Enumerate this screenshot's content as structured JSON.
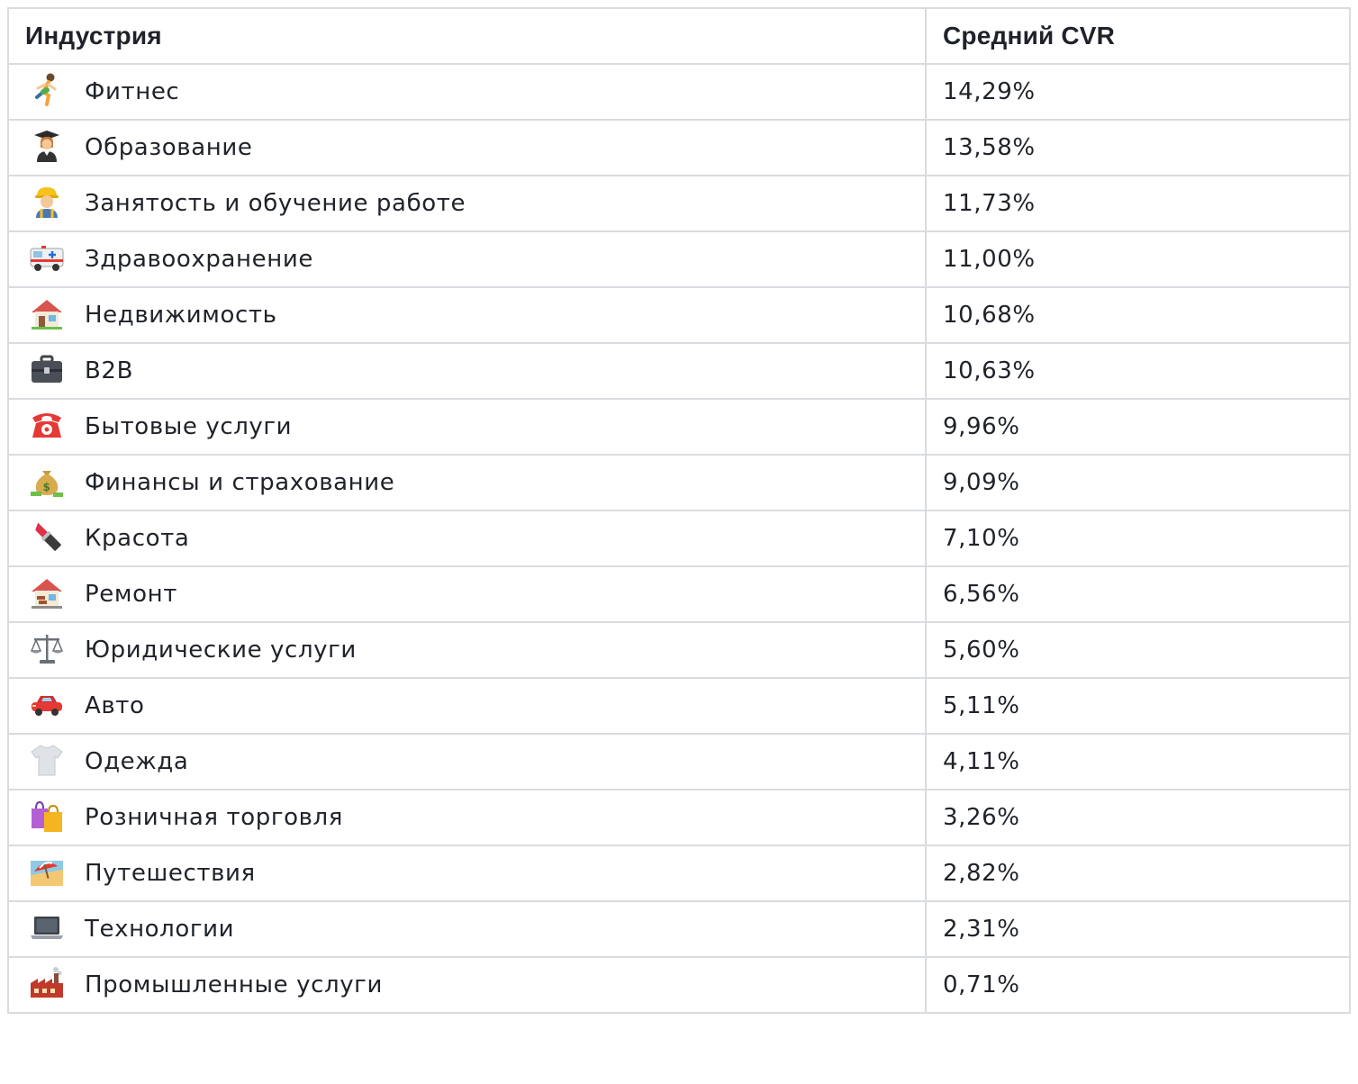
{
  "table": {
    "headers": {
      "industry": "Индустрия",
      "cvr": "Средний CVR"
    },
    "rows": [
      {
        "icon": "runner-icon",
        "name": "Фитнес",
        "cvr": "14,29%"
      },
      {
        "icon": "graduate-icon",
        "name": "Образование",
        "cvr": "13,58%"
      },
      {
        "icon": "construction-worker-icon",
        "name": "Занятость и обучение работе",
        "cvr": "11,73%"
      },
      {
        "icon": "ambulance-icon",
        "name": "Здравоохранение",
        "cvr": "11,00%"
      },
      {
        "icon": "house-icon",
        "name": "Недвижимость",
        "cvr": "10,68%"
      },
      {
        "icon": "briefcase-icon",
        "name": "B2B",
        "cvr": "10,63%"
      },
      {
        "icon": "telephone-icon",
        "name": "Бытовые услуги",
        "cvr": "9,96%"
      },
      {
        "icon": "money-bag-icon",
        "name": "Финансы и страхование",
        "cvr": "9,09%"
      },
      {
        "icon": "lipstick-icon",
        "name": "Красота",
        "cvr": "7,10%"
      },
      {
        "icon": "house-bricks-icon",
        "name": "Ремонт",
        "cvr": "6,56%"
      },
      {
        "icon": "scales-icon",
        "name": "Юридические услуги",
        "cvr": "5,60%"
      },
      {
        "icon": "car-icon",
        "name": "Авто",
        "cvr": "5,11%"
      },
      {
        "icon": "tshirt-icon",
        "name": "Одежда",
        "cvr": "4,11%"
      },
      {
        "icon": "shopping-bags-icon",
        "name": "Розничная торговля",
        "cvr": "3,26%"
      },
      {
        "icon": "beach-umbrella-icon",
        "name": "Путешествия",
        "cvr": "2,82%"
      },
      {
        "icon": "laptop-icon",
        "name": "Технологии",
        "cvr": "2,31%"
      },
      {
        "icon": "factory-icon",
        "name": "Промышленные услуги",
        "cvr": "0,71%"
      }
    ]
  }
}
